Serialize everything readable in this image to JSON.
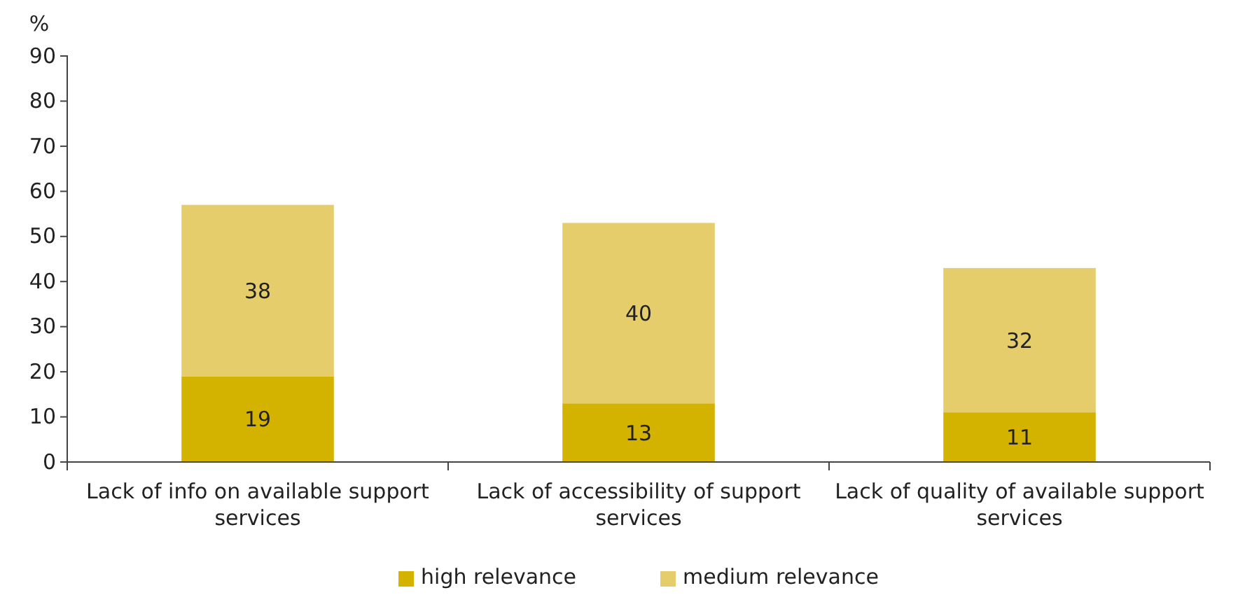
{
  "chart_data": {
    "type": "bar",
    "ylabel": "%",
    "categories": [
      "Lack of info on available support services",
      "Lack of accessibility of support services",
      "Lack of quality of available support services"
    ],
    "series": [
      {
        "name": "high relevance",
        "color": "#d4b200",
        "values": [
          19,
          13,
          11
        ]
      },
      {
        "name": "medium relevance",
        "color": "#e5cd6b",
        "values": [
          38,
          40,
          32
        ]
      }
    ],
    "stacked": true,
    "data_labels": true,
    "ylim": [
      0,
      90
    ],
    "yticks": [
      0,
      10,
      20,
      30,
      40,
      50,
      60,
      70,
      80,
      90
    ],
    "grid": false,
    "legend": "bottom"
  }
}
